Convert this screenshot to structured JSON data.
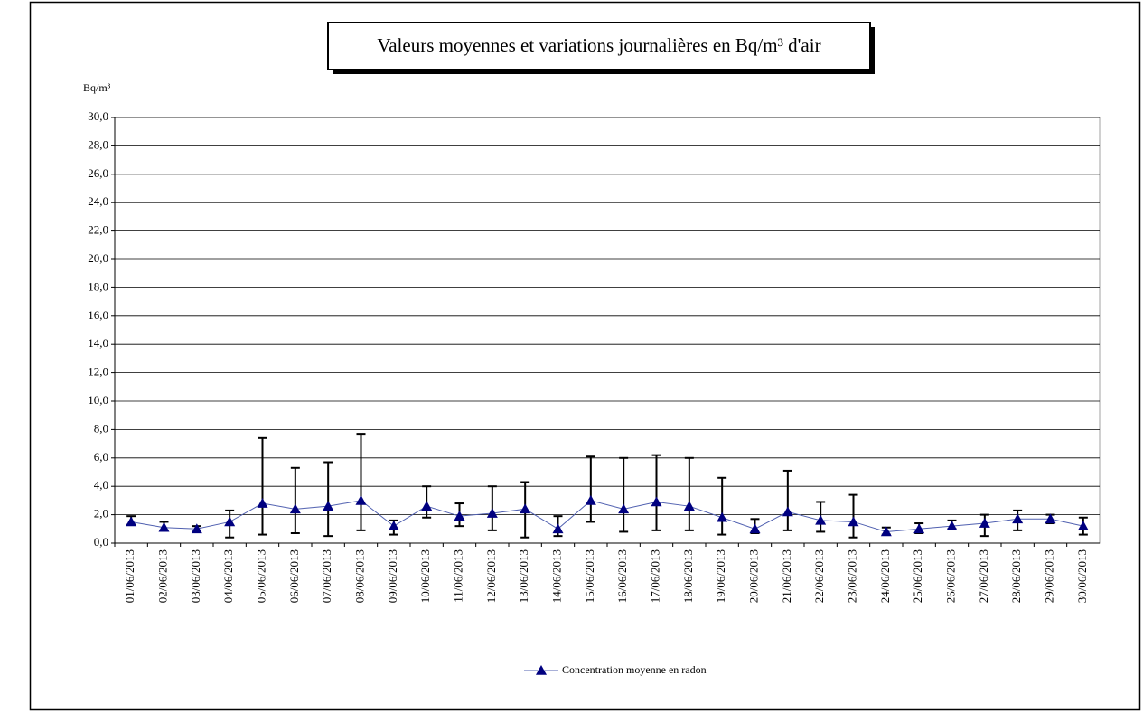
{
  "chart_data": {
    "type": "line",
    "title": "Valeurs moyennes et variations journalières en Bq/m³ d'air",
    "y_label": "Bq/m³",
    "categories": [
      "01/06/2013",
      "02/06/2013",
      "03/06/2013",
      "04/06/2013",
      "05/06/2013",
      "06/06/2013",
      "07/06/2013",
      "08/06/2013",
      "09/06/2013",
      "10/06/2013",
      "11/06/2013",
      "12/06/2013",
      "13/06/2013",
      "14/06/2013",
      "15/06/2013",
      "16/06/2013",
      "17/06/2013",
      "18/06/2013",
      "19/06/2013",
      "20/06/2013",
      "21/06/2013",
      "22/06/2013",
      "23/06/2013",
      "24/06/2013",
      "25/06/2013",
      "26/06/2013",
      "27/06/2013",
      "28/06/2013",
      "29/06/2013",
      "30/06/2013"
    ],
    "series": [
      {
        "name": "Concentration moyenne en radon",
        "color": "#000080",
        "values": [
          1.5,
          1.1,
          1.0,
          1.5,
          2.8,
          2.4,
          2.6,
          3.0,
          1.2,
          2.6,
          1.9,
          2.1,
          2.4,
          1.0,
          3.0,
          2.4,
          2.9,
          2.6,
          1.8,
          1.0,
          2.2,
          1.6,
          1.5,
          0.8,
          1.0,
          1.2,
          1.4,
          1.7,
          1.7,
          1.2
        ],
        "low": [
          1.3,
          0.9,
          0.8,
          0.4,
          0.6,
          0.7,
          0.5,
          0.9,
          0.6,
          1.8,
          1.2,
          0.9,
          0.4,
          0.5,
          1.5,
          0.8,
          0.9,
          0.9,
          0.6,
          0.7,
          0.9,
          0.8,
          0.4,
          0.6,
          0.7,
          1.0,
          0.5,
          0.9,
          1.4,
          0.6
        ],
        "high": [
          1.9,
          1.5,
          1.2,
          2.3,
          7.4,
          5.3,
          5.7,
          7.7,
          1.6,
          4.0,
          2.8,
          4.0,
          4.3,
          1.9,
          6.1,
          6.0,
          6.2,
          6.0,
          4.6,
          1.7,
          5.1,
          2.9,
          3.4,
          1.1,
          1.4,
          1.6,
          2.0,
          2.3,
          2.0,
          1.8
        ]
      }
    ],
    "ylim": [
      0,
      30
    ],
    "yticks": [
      {
        "value": 0,
        "label": "0,0"
      },
      {
        "value": 2,
        "label": "2,0"
      },
      {
        "value": 4,
        "label": "4,0"
      },
      {
        "value": 6,
        "label": "6,0"
      },
      {
        "value": 8,
        "label": "8,0"
      },
      {
        "value": 10,
        "label": "10,0"
      },
      {
        "value": 12,
        "label": "12,0"
      },
      {
        "value": 14,
        "label": "14,0"
      },
      {
        "value": 16,
        "label": "16,0"
      },
      {
        "value": 18,
        "label": "18,0"
      },
      {
        "value": 20,
        "label": "20,0"
      },
      {
        "value": 22,
        "label": "22,0"
      },
      {
        "value": 24,
        "label": "24,0"
      },
      {
        "value": 26,
        "label": "26,0"
      },
      {
        "value": 28,
        "label": "28,0"
      },
      {
        "value": 30,
        "label": "30,0"
      }
    ],
    "grid": true,
    "legend": "bottom"
  }
}
